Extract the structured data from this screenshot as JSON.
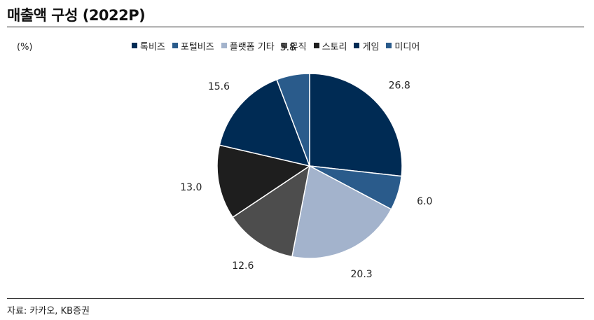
{
  "title": "매출액 구성 (2022P)",
  "unit_label": "(%)",
  "source": "자료: 카카오, KB증권",
  "chart_data": {
    "type": "pie",
    "title": "매출액 구성 (2022P)",
    "legend_position": "top",
    "categories": [
      "톡비즈",
      "포털비즈",
      "플랫폼 기타",
      "뮤직",
      "스토리",
      "게임",
      "미디어"
    ],
    "values": [
      26.8,
      6.0,
      20.3,
      12.6,
      13.0,
      15.6,
      5.8
    ],
    "labels": [
      "26.8",
      "6.0",
      "20.3",
      "12.6",
      "13.0",
      "15.6",
      "5.8"
    ],
    "colors": [
      "#002B54",
      "#2A5B8B",
      "#A3B3CC",
      "#4D4D4D",
      "#1E1E1E",
      "#002B54",
      "#2A5B8B"
    ]
  }
}
